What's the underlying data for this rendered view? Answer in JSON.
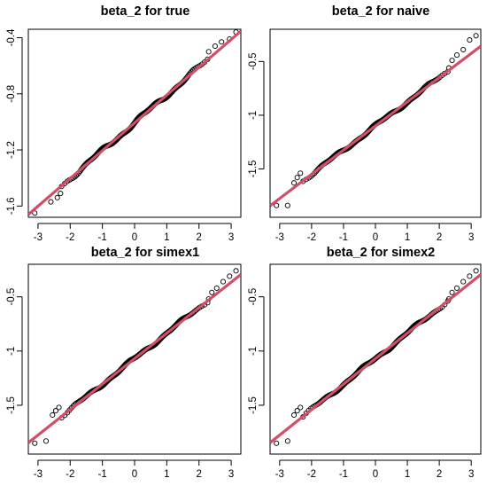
{
  "chart_data": [
    {
      "type": "scatter",
      "title": "beta_2 for true",
      "xlim": [
        -3.3,
        3.3
      ],
      "ylim": [
        -1.68,
        -0.34
      ],
      "xticks": [
        -3,
        -2,
        -1,
        0,
        1,
        2,
        3
      ],
      "yticks": [
        -1.6,
        -1.2,
        -0.8,
        -0.4
      ],
      "line_color": "#d24f6a",
      "point_color": "#000000",
      "reference_line": {
        "intercept": -1.007,
        "slope": 0.198
      },
      "extreme_points": {
        "x": [
          -3.1,
          -2.6,
          -2.4,
          -2.3,
          2.3,
          2.5,
          2.7,
          2.95,
          3.15
        ],
        "y": [
          -1.65,
          -1.57,
          -1.54,
          -1.51,
          -0.5,
          -0.46,
          -0.43,
          -0.41,
          -0.36
        ]
      },
      "n_points": 300
    },
    {
      "type": "scatter",
      "title": "beta_2 for naive",
      "xlim": [
        -3.3,
        3.3
      ],
      "ylim": [
        -1.95,
        -0.2
      ],
      "xticks": [
        -3,
        -2,
        -1,
        0,
        1,
        2,
        3
      ],
      "yticks": [
        -1.5,
        -1.0,
        -0.5
      ],
      "line_color": "#d24f6a",
      "point_color": "#000000",
      "reference_line": {
        "intercept": -1.1,
        "slope": 0.225
      },
      "extreme_points": {
        "x": [
          -3.1,
          -2.75,
          -2.55,
          -2.45,
          -2.35,
          2.3,
          2.4,
          2.55,
          2.75,
          2.95,
          3.15
        ],
        "y": [
          -1.84,
          -1.84,
          -1.63,
          -1.58,
          -1.54,
          -0.56,
          -0.49,
          -0.44,
          -0.39,
          -0.3,
          -0.26
        ]
      },
      "n_points": 300
    },
    {
      "type": "scatter",
      "title": "beta_2 for simex1",
      "xlim": [
        -3.3,
        3.3
      ],
      "ylim": [
        -1.95,
        -0.2
      ],
      "xticks": [
        -3,
        -2,
        -1,
        0,
        1,
        2,
        3
      ],
      "yticks": [
        -1.5,
        -1.0,
        -0.5
      ],
      "line_color": "#d24f6a",
      "point_color": "#000000",
      "reference_line": {
        "intercept": -1.07,
        "slope": 0.235
      },
      "extreme_points": {
        "x": [
          -3.1,
          -2.75,
          -2.55,
          -2.45,
          -2.35,
          2.3,
          2.4,
          2.55,
          2.75,
          2.95,
          3.15
        ],
        "y": [
          -1.85,
          -1.83,
          -1.59,
          -1.55,
          -1.52,
          -0.52,
          -0.46,
          -0.42,
          -0.36,
          -0.31,
          -0.26
        ]
      },
      "n_points": 300
    },
    {
      "type": "scatter",
      "title": "beta_2 for simex2",
      "xlim": [
        -3.3,
        3.3
      ],
      "ylim": [
        -1.95,
        -0.2
      ],
      "xticks": [
        -3,
        -2,
        -1,
        0,
        1,
        2,
        3
      ],
      "yticks": [
        -1.5,
        -1.0,
        -0.5
      ],
      "line_color": "#d24f6a",
      "point_color": "#000000",
      "reference_line": {
        "intercept": -1.07,
        "slope": 0.235
      },
      "extreme_points": {
        "x": [
          -3.1,
          -2.75,
          -2.55,
          -2.45,
          -2.35,
          2.3,
          2.4,
          2.55,
          2.75,
          2.95,
          3.15
        ],
        "y": [
          -1.85,
          -1.83,
          -1.59,
          -1.55,
          -1.52,
          -0.52,
          -0.46,
          -0.42,
          -0.36,
          -0.31,
          -0.26
        ]
      },
      "n_points": 300
    }
  ]
}
